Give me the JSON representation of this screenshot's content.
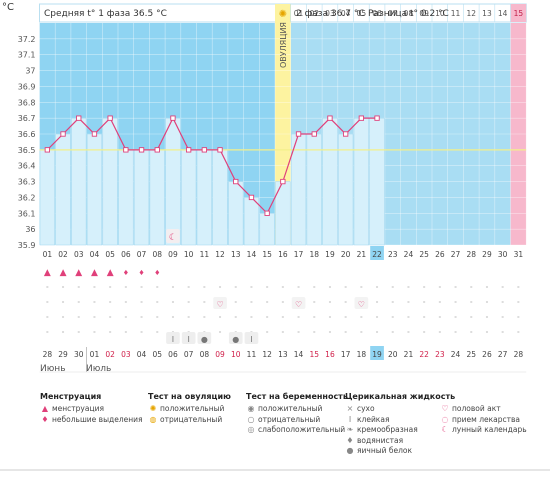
{
  "header": {
    "unit": "°C",
    "phase1": "Средняя t° 1 фаза 36.5 °C",
    "phase2": "2 фаза 36.7 °C",
    "difference": "Разница t° 0.2 °C",
    "ovulation": "ОВУЛЯЦИЯ"
  },
  "colors": {
    "phase1_bg": "#8fd4f2",
    "phase2_bg": "#a9ddf3",
    "bar": "#d6f0fb",
    "line": "#e0407a",
    "coverline": "#f3f08a",
    "ovulation": "#fdf3a0",
    "pink": "#f7b8cc",
    "today": "#8fd4f2"
  },
  "chart_data": {
    "type": "line",
    "ylabel": "°C",
    "ylim": [
      35.9,
      37.3
    ],
    "yticks": [
      "37.2",
      "37.1",
      "37",
      "36.9",
      "36.8",
      "36.7",
      "36.6",
      "36.5",
      "36.4",
      "36.3",
      "36.2",
      "36.1",
      "36",
      "35.9"
    ],
    "coverline": 36.5,
    "cycle_days": [
      "01",
      "02",
      "03",
      "04",
      "05",
      "06",
      "07",
      "08",
      "09",
      "10",
      "11",
      "12",
      "13",
      "14",
      "15",
      "16",
      "17",
      "18",
      "19",
      "20",
      "21",
      "22",
      "23",
      "24",
      "25",
      "26",
      "27",
      "28",
      "29",
      "30",
      "31"
    ],
    "phase2_day_labels": [
      "01",
      "02",
      "03",
      "04",
      "05",
      "06",
      "07",
      "08",
      "09",
      "10",
      "11",
      "12",
      "13",
      "14",
      "15"
    ],
    "series": [
      {
        "values": [
          36.5,
          36.6,
          36.7,
          36.6,
          36.7,
          36.5,
          36.5,
          36.5,
          36.7,
          36.5,
          36.5,
          36.5,
          36.3,
          36.2,
          36.1,
          36.3,
          36.6,
          36.6,
          36.7,
          36.6,
          36.7,
          36.7
        ]
      }
    ],
    "ovulation_day": 16,
    "today": 22,
    "last_day": 31
  },
  "symbols": {
    "menstruation": [
      1,
      2,
      3,
      4,
      5,
      6,
      7,
      8
    ],
    "heavy": [
      1,
      2,
      3,
      4,
      5
    ],
    "moon": [
      9
    ],
    "heart": [
      12,
      17,
      21
    ],
    "mucus": [
      {
        "day": 9,
        "icon": "Ӏ"
      },
      {
        "day": 10,
        "icon": "Ӏ"
      },
      {
        "day": 11,
        "icon": "●"
      },
      {
        "day": 13,
        "icon": "●"
      },
      {
        "day": 14,
        "icon": "Ӏ"
      }
    ]
  },
  "calendar": {
    "dates": [
      "28",
      "29",
      "30",
      "01",
      "02",
      "03",
      "04",
      "05",
      "06",
      "07",
      "08",
      "09",
      "10",
      "11",
      "12",
      "13",
      "14",
      "15",
      "16",
      "17",
      "18",
      "19",
      "20",
      "21",
      "22",
      "23",
      "24",
      "25",
      "26",
      "27",
      "28"
    ],
    "red": [
      5,
      6,
      12,
      13,
      18,
      19,
      25,
      26
    ],
    "month1": "Июнь",
    "month2": "Июль"
  },
  "legend": {
    "groups": [
      {
        "title": "Менструация",
        "items": [
          {
            "icon": "▲",
            "label": "менструация"
          },
          {
            "icon": "♦",
            "label": "небольшие выделения"
          }
        ]
      },
      {
        "title": "Тест на овуляцию",
        "items": [
          {
            "icon": "✺",
            "label": "положительный"
          },
          {
            "icon": "◍",
            "label": "отрицательный"
          }
        ]
      },
      {
        "title": "Тест на беременность",
        "items": [
          {
            "icon": "◉",
            "label": "положительный"
          },
          {
            "icon": "○",
            "label": "отрицательный"
          },
          {
            "icon": "◎",
            "label": "слабоположительный"
          }
        ]
      },
      {
        "title": "Церикальная жидкость",
        "items": [
          {
            "icon": "×",
            "label": "сухо"
          },
          {
            "icon": "Ӏ",
            "label": "клейкая"
          },
          {
            "icon": "❧",
            "label": "кремообразная"
          },
          {
            "icon": "♦",
            "label": "водянистая"
          },
          {
            "icon": "●",
            "label": "яичный белок"
          }
        ]
      },
      {
        "title": "",
        "items": [
          {
            "icon": "♡",
            "label": "половой акт"
          },
          {
            "icon": "◌",
            "label": "прием лекарства"
          },
          {
            "icon": "☾",
            "label": "лунный календарь"
          }
        ]
      }
    ]
  }
}
